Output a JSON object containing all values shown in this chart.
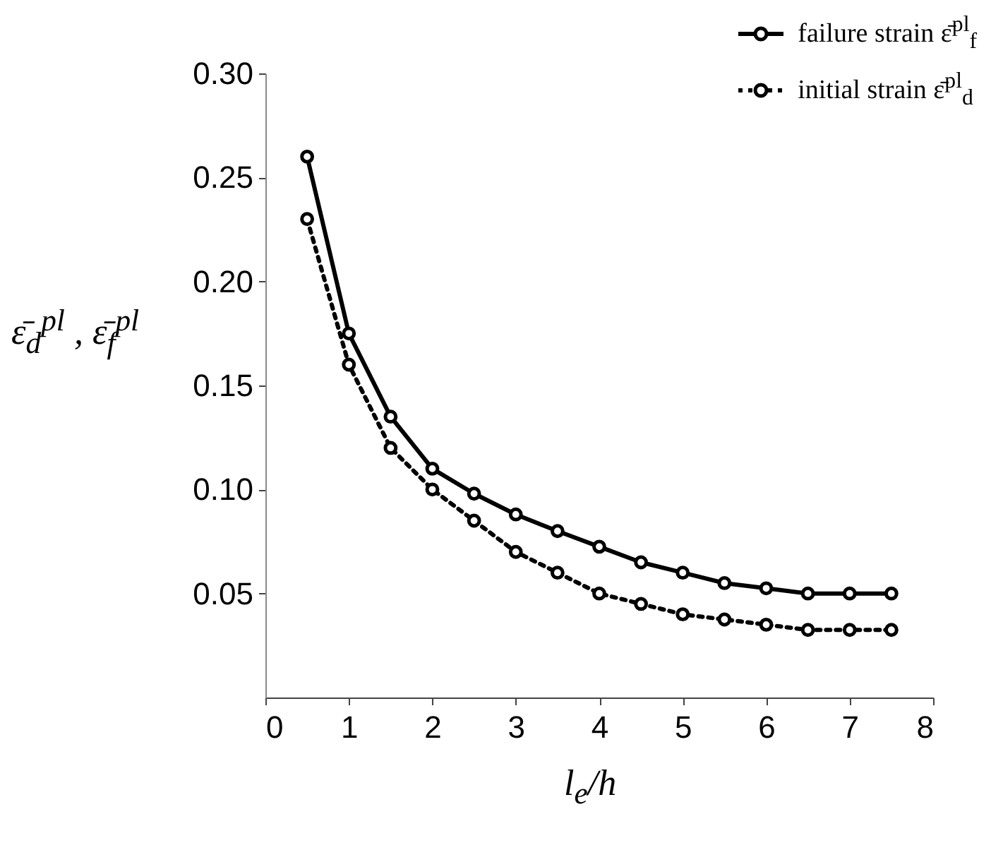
{
  "chart_data": {
    "type": "line",
    "xlabel": "l$_{e}$/h",
    "ylabel": "ε̄$_{d}$$^{pl}$ , ε̄$_{f}$$^{pl}$",
    "x": [
      0.5,
      1,
      1.5,
      2,
      2.5,
      3,
      3.5,
      4,
      4.5,
      5,
      5.5,
      6,
      6.5,
      7,
      7.5
    ],
    "series": [
      {
        "name": "failure strain ε̄$^{pl}$$_{f}$",
        "color": "#000000",
        "line_style": "solid",
        "values": [
          0.26,
          0.175,
          0.135,
          0.11,
          0.098,
          0.088,
          0.08,
          0.0725,
          0.065,
          0.06,
          0.055,
          0.0525,
          0.05,
          0.05,
          0.05
        ]
      },
      {
        "name": "initial strain ε̄$^{pl}$$_{d}$",
        "color": "#000000",
        "line_style": "dotted",
        "values": [
          0.23,
          0.16,
          0.12,
          0.1,
          0.085,
          0.07,
          0.06,
          0.05,
          0.045,
          0.04,
          0.0375,
          0.035,
          0.0325,
          0.0325,
          0.0325
        ]
      }
    ],
    "xlim": [
      0,
      8
    ],
    "xticks": [
      0,
      1,
      2,
      3,
      4,
      5,
      6,
      7,
      8
    ],
    "ylim": [
      0,
      0.3
    ],
    "yticks": [
      0.05,
      {
        "value": 0.1,
        "label": "0.10"
      },
      0.15,
      {
        "value": 0.2,
        "label": "0.20"
      },
      0.25,
      {
        "value": 0.3,
        "label": "0.30"
      }
    ],
    "grid": false,
    "legend": "top right",
    "marker": "circle"
  }
}
